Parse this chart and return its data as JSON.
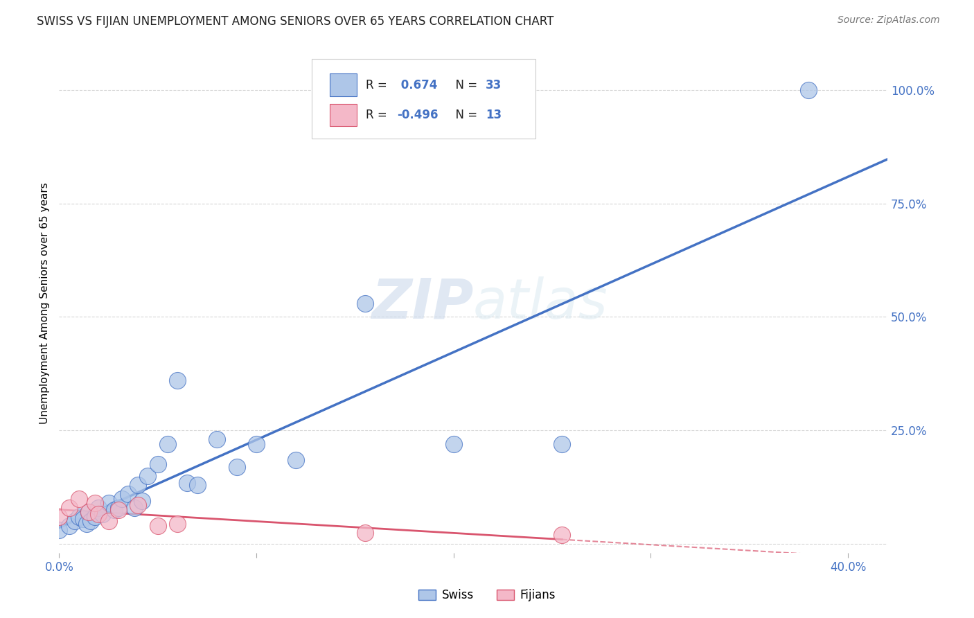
{
  "title": "SWISS VS FIJIAN UNEMPLOYMENT AMONG SENIORS OVER 65 YEARS CORRELATION CHART",
  "source": "Source: ZipAtlas.com",
  "ylabel": "Unemployment Among Seniors over 65 years",
  "xlim": [
    0.0,
    0.42
  ],
  "ylim": [
    -0.02,
    1.08
  ],
  "swiss_R": 0.674,
  "swiss_N": 33,
  "fijian_R": -0.496,
  "fijian_N": 13,
  "swiss_color": "#aec6e8",
  "fijian_color": "#f4b8c8",
  "swiss_line_color": "#4472c4",
  "fijian_line_color": "#d9556e",
  "watermark_zip": "ZIP",
  "watermark_atlas": "atlas",
  "swiss_x": [
    0.0,
    0.005,
    0.008,
    0.01,
    0.012,
    0.014,
    0.015,
    0.016,
    0.018,
    0.02,
    0.022,
    0.025,
    0.028,
    0.03,
    0.032,
    0.035,
    0.038,
    0.04,
    0.042,
    0.045,
    0.05,
    0.055,
    0.06,
    0.065,
    0.07,
    0.08,
    0.09,
    0.1,
    0.12,
    0.155,
    0.2,
    0.255,
    0.38
  ],
  "swiss_y": [
    0.03,
    0.04,
    0.05,
    0.06,
    0.055,
    0.045,
    0.07,
    0.05,
    0.06,
    0.08,
    0.065,
    0.09,
    0.075,
    0.08,
    0.1,
    0.11,
    0.08,
    0.13,
    0.095,
    0.15,
    0.175,
    0.22,
    0.36,
    0.135,
    0.13,
    0.23,
    0.17,
    0.22,
    0.185,
    0.53,
    0.22,
    0.22,
    1.0
  ],
  "fijian_x": [
    0.0,
    0.005,
    0.01,
    0.015,
    0.018,
    0.02,
    0.025,
    0.03,
    0.04,
    0.05,
    0.06,
    0.155,
    0.255
  ],
  "fijian_y": [
    0.06,
    0.08,
    0.1,
    0.07,
    0.09,
    0.065,
    0.05,
    0.075,
    0.085,
    0.04,
    0.045,
    0.025,
    0.02
  ],
  "background_color": "#ffffff",
  "grid_color": "#cccccc",
  "x_tick_positions": [
    0.0,
    0.1,
    0.2,
    0.3,
    0.4
  ],
  "x_tick_labels": [
    "0.0%",
    "",
    "",
    "",
    "40.0%"
  ],
  "y_tick_positions": [
    0.0,
    0.25,
    0.5,
    0.75,
    1.0
  ],
  "y_tick_labels_right": [
    "",
    "25.0%",
    "50.0%",
    "75.0%",
    "100.0%"
  ]
}
